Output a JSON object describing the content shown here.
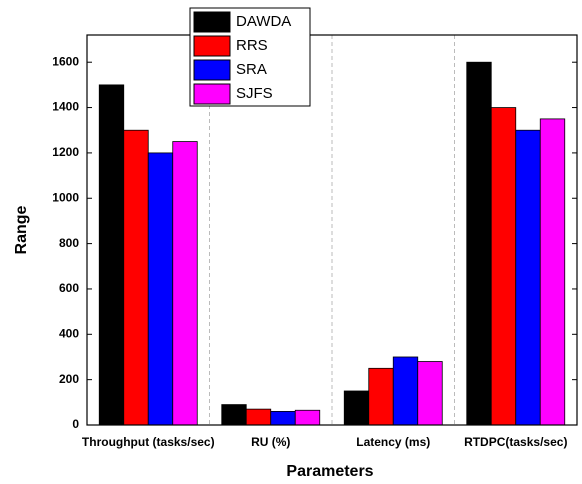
{
  "chart_data": {
    "type": "bar",
    "categories": [
      "Throughput (tasks/sec)",
      "RU (%)",
      "Latency (ms)",
      "RTDPC(tasks/sec)"
    ],
    "series": [
      {
        "name": "DAWDA",
        "color": "#000000",
        "values": [
          1500,
          90,
          150,
          1600
        ]
      },
      {
        "name": "RRS",
        "color": "#ff0000",
        "values": [
          1300,
          70,
          250,
          1400
        ]
      },
      {
        "name": "SRA",
        "color": "#0000ff",
        "values": [
          1200,
          60,
          300,
          1300
        ]
      },
      {
        "name": "SJFS",
        "color": "#ff00ff",
        "values": [
          1250,
          65,
          280,
          1350
        ]
      }
    ],
    "xlabel": "Parameters",
    "ylabel": "Range",
    "ylim": [
      0,
      1720
    ],
    "yticks": [
      0,
      200,
      400,
      600,
      800,
      1000,
      1200,
      1400,
      1600
    ],
    "grid": true,
    "legend": "top-left"
  }
}
